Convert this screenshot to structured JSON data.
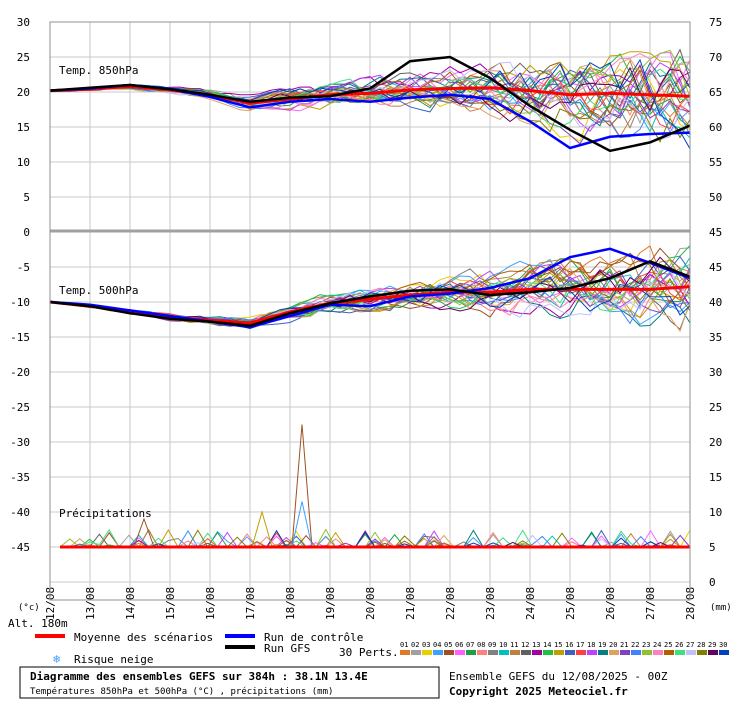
{
  "chart_data": {
    "type": "line",
    "panel_labels": {
      "t850": "Temp. 850hPa",
      "t500": "Temp. 500hPa",
      "precip": "Précipitations"
    },
    "left_axis": {
      "min": -45,
      "max": 30,
      "ticks": [
        30,
        25,
        20,
        15,
        10,
        5,
        0,
        -5,
        -10,
        -15,
        -20,
        -25,
        -30,
        -35,
        -40,
        -45
      ],
      "unit": "(°c)"
    },
    "right_axis": {
      "ticks_upper": [
        75,
        70,
        65,
        60,
        55,
        50,
        45
      ],
      "ticks_mid": [
        45,
        40,
        35,
        30,
        25,
        20,
        15,
        10,
        5,
        0
      ],
      "unit": "(mm)"
    },
    "dates": [
      "12/08",
      "13/08",
      "14/08",
      "15/08",
      "16/08",
      "17/08",
      "18/08",
      "19/08",
      "20/08",
      "21/08",
      "22/08",
      "23/08",
      "24/08",
      "25/08",
      "26/08",
      "27/08",
      "28/08"
    ],
    "altitude": "Alt. 180m",
    "series": [
      {
        "name": "Moyenne des scénarios",
        "color": "#ff0000",
        "t850": [
          20.2,
          20.4,
          20.8,
          20.3,
          19.6,
          18.4,
          19.0,
          19.6,
          19.8,
          20.3,
          20.5,
          20.6,
          20.2,
          19.6,
          19.8,
          19.6,
          19.4
        ],
        "t500": [
          -10.0,
          -10.6,
          -11.4,
          -12.2,
          -12.6,
          -13.0,
          -11.4,
          -10.2,
          -9.6,
          -9.0,
          -8.6,
          -8.6,
          -8.2,
          -8.2,
          -8.2,
          -8.2,
          -7.8
        ]
      },
      {
        "name": "Run de contrôle",
        "color": "#0000ff",
        "t850": [
          20.2,
          20.5,
          21.0,
          20.4,
          19.3,
          17.8,
          18.6,
          19.0,
          18.6,
          19.2,
          19.6,
          19.0,
          15.8,
          12.0,
          13.6,
          14.0,
          14.2
        ],
        "t500": [
          -10.0,
          -10.4,
          -11.2,
          -12.0,
          -12.8,
          -13.6,
          -12.0,
          -10.4,
          -10.6,
          -9.2,
          -8.8,
          -8.0,
          -6.6,
          -3.6,
          -2.4,
          -4.4,
          -6.6
        ]
      },
      {
        "name": "Run GFS",
        "color": "#000000",
        "t850": [
          20.2,
          20.6,
          21.0,
          20.4,
          19.6,
          18.6,
          19.2,
          19.4,
          20.5,
          24.4,
          25.0,
          22.0,
          18.0,
          14.6,
          11.6,
          12.8,
          15.2
        ],
        "t500": [
          -10.0,
          -10.6,
          -11.6,
          -12.4,
          -12.8,
          -13.4,
          -11.6,
          -10.2,
          -9.2,
          -8.4,
          -8.2,
          -9.0,
          -8.6,
          -8.0,
          -6.6,
          -4.2,
          -6.4
        ]
      }
    ],
    "precip_peaks": [
      {
        "date": "14/08",
        "mm": 4
      },
      {
        "date": "17/08",
        "mm": 5
      },
      {
        "date": "17/08",
        "mm": 17.5
      },
      {
        "date": "17/08",
        "mm": 6.5
      }
    ],
    "snow_label": "Risque neige",
    "perturbations_label": "30 Perts.",
    "perturbation_ids": [
      "01",
      "02",
      "03",
      "04",
      "05",
      "06",
      "07",
      "08",
      "09",
      "10",
      "11",
      "12",
      "13",
      "14",
      "15",
      "16",
      "17",
      "18",
      "19",
      "20",
      "21",
      "22",
      "23",
      "24",
      "25",
      "26",
      "27",
      "28",
      "29",
      "30"
    ],
    "perturbation_colors": [
      "#e0782a",
      "#a0a0a0",
      "#e8d000",
      "#40a0ff",
      "#a05020",
      "#ff60ff",
      "#20a040",
      "#ff8080",
      "#808080",
      "#00c0c0",
      "#c08040",
      "#606060",
      "#a000a0",
      "#20c040",
      "#c0a000",
      "#4060c0",
      "#ff4040",
      "#c040ff",
      "#008080",
      "#e0a060",
      "#8040c0",
      "#4080ff",
      "#90c030",
      "#ff80c0",
      "#b06000",
      "#40e080",
      "#c0c0ff",
      "#808000",
      "#600060",
      "#0040c0"
    ],
    "title": "Diagramme des ensembles GEFS sur 384h : 38.1N 13.4E",
    "subtitle": "Températures 850hPa et 500hPa (°C) , précipitations (mm)",
    "run_info": "Ensemble GEFS du 12/08/2025 - 00Z",
    "copyright": "Copyright 2025 Meteociel.fr"
  }
}
